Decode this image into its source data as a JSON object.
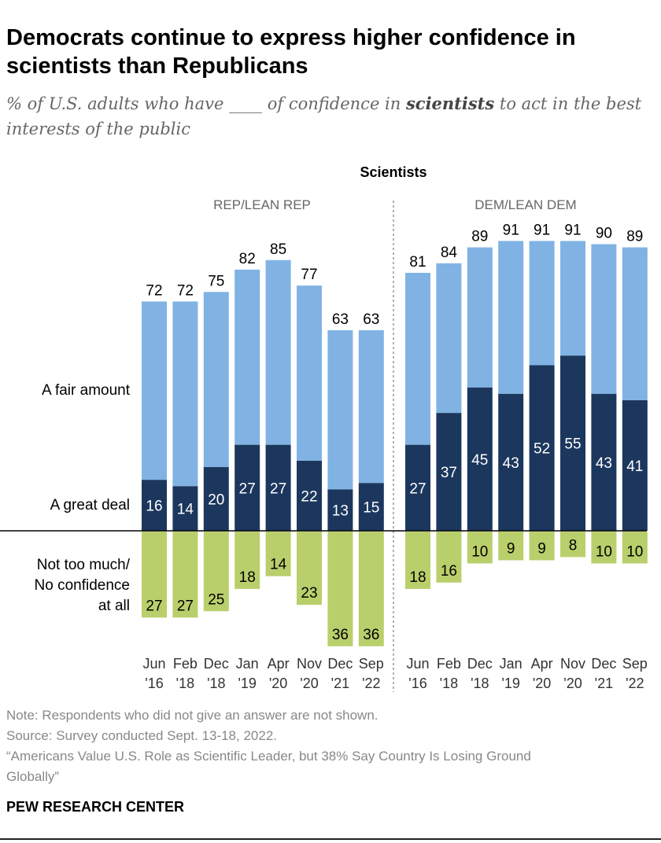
{
  "title": "Democrats continue to express higher confidence in scientists than Republicans",
  "subtitle": {
    "pre": "% of U.S. adults who have ____ of confidence in ",
    "bold": "scientists",
    "post": " to act in the best interests of the public"
  },
  "colors": {
    "fair_amount": "#80b3e4",
    "great_deal": "#1c375e",
    "not_too_much": "#b9cf6b"
  },
  "chart_data": {
    "type": "bar",
    "stacked": true,
    "title": "Scientists",
    "categories": [
      [
        "Jun",
        "'16"
      ],
      [
        "Feb",
        "'18"
      ],
      [
        "Dec",
        "'18"
      ],
      [
        "Jan",
        "'19"
      ],
      [
        "Apr",
        "'20"
      ],
      [
        "Nov",
        "'20"
      ],
      [
        "Dec",
        "'21"
      ],
      [
        "Sep",
        "'22"
      ]
    ],
    "row_labels": {
      "fair_amount": "A fair amount",
      "great_deal": "A great deal",
      "not_too_much": [
        "Not too much/",
        "No confidence",
        "at all"
      ]
    },
    "panels": [
      {
        "name": "REP/LEAN REP",
        "total": [
          72,
          72,
          75,
          82,
          85,
          77,
          63,
          63
        ],
        "great_deal": [
          16,
          14,
          20,
          27,
          27,
          22,
          13,
          15
        ],
        "not_too_much": [
          27,
          27,
          25,
          18,
          14,
          23,
          36,
          36
        ]
      },
      {
        "name": "DEM/LEAN DEM",
        "total": [
          81,
          84,
          89,
          91,
          91,
          91,
          90,
          89
        ],
        "great_deal": [
          27,
          37,
          45,
          43,
          52,
          55,
          43,
          41
        ],
        "not_too_much": [
          18,
          16,
          10,
          9,
          9,
          8,
          10,
          10
        ]
      }
    ]
  },
  "footer": {
    "note": "Note: Respondents who did not give an answer are not shown.",
    "source": "Source: Survey conducted Sept. 13-18, 2022.",
    "report_line1": "“Americans Value U.S. Role as Scientific Leader, but 38% Say Country Is Losing Ground",
    "report_line2": "Globally”",
    "org": "PEW RESEARCH CENTER"
  }
}
